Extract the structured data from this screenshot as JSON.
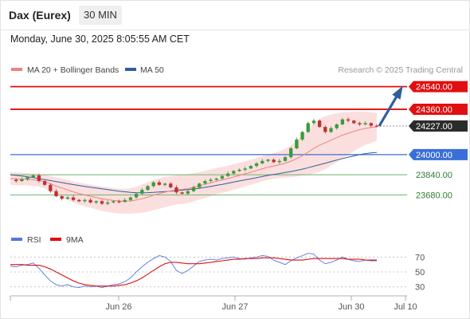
{
  "header": {
    "title": "Dax (Eurex)",
    "timeframe": "30 MIN"
  },
  "datetime": "Monday, June 30, 2025 8:05:55 AM CET",
  "legend": {
    "items": [
      {
        "label": "MA 20 + Bollinger Bands",
        "color": "#f08080"
      },
      {
        "label": "MA 50",
        "color": "#2f5f9f"
      }
    ],
    "credit": "Research © 2025 Trading Central"
  },
  "rsi_legend": {
    "items": [
      {
        "label": "RSI",
        "color": "#5577dd"
      },
      {
        "label": "9MA",
        "color": "#dd1111"
      }
    ]
  },
  "colors": {
    "resistance": "#e01010",
    "support_blue": "#3a6fd8",
    "support_green": "#6db36d",
    "arrow": "#2f5f9f",
    "up_candle": "#3c9a3c",
    "down_candle": "#c03030",
    "band": "#f7c5c5"
  },
  "chart_data": [
    {
      "type": "candlestick",
      "title": "",
      "x_ticks": [
        "Jun 26",
        "Jun 27",
        "Jun 30",
        "Jul 10"
      ],
      "ylim": [
        23480,
        24620
      ],
      "levels": [
        {
          "label": "24540.00",
          "value": 24540,
          "kind": "resistance",
          "style": "tag"
        },
        {
          "label": "24360.00",
          "value": 24360,
          "kind": "resistance",
          "style": "tag"
        },
        {
          "label": "24227.00",
          "value": 24227,
          "kind": "current",
          "style": "tag"
        },
        {
          "label": "24000.00",
          "value": 24000,
          "kind": "support",
          "style": "tag"
        },
        {
          "label": "23840.00",
          "value": 23840,
          "kind": "support",
          "style": "text"
        },
        {
          "label": "23680.00",
          "value": 23680,
          "kind": "support",
          "style": "text"
        }
      ],
      "close_series": [
        23800,
        23790,
        23805,
        23820,
        23835,
        23790,
        23760,
        23710,
        23670,
        23650,
        23660,
        23640,
        23630,
        23640,
        23620,
        23630,
        23610,
        23620,
        23630,
        23625,
        23640,
        23660,
        23690,
        23720,
        23750,
        23780,
        23760,
        23770,
        23740,
        23700,
        23690,
        23710,
        23740,
        23770,
        23790,
        23800,
        23810,
        23830,
        23850,
        23870,
        23880,
        23890,
        23910,
        23930,
        23950,
        23960,
        23940,
        23950,
        23980,
        24050,
        24120,
        24180,
        24250,
        24270,
        24220,
        24180,
        24210,
        24240,
        24280,
        24270,
        24250,
        24240,
        24250,
        24230,
        24227
      ],
      "ma20": [
        23810,
        23808,
        23806,
        23804,
        23800,
        23795,
        23785,
        23770,
        23750,
        23735,
        23720,
        23705,
        23690,
        23680,
        23670,
        23660,
        23650,
        23642,
        23636,
        23632,
        23630,
        23632,
        23640,
        23650,
        23663,
        23678,
        23690,
        23702,
        23712,
        23720,
        23724,
        23730,
        23740,
        23752,
        23764,
        23776,
        23790,
        23800,
        23810,
        23822,
        23835,
        23848,
        23860,
        23874,
        23888,
        23900,
        23910,
        23920,
        23932,
        23948,
        23968,
        23992,
        24020,
        24050,
        24075,
        24095,
        24115,
        24135,
        24155,
        24170,
        24185,
        24198,
        24208,
        24215,
        24220
      ],
      "ma50": [
        23840,
        23835,
        23830,
        23824,
        23818,
        23810,
        23802,
        23794,
        23786,
        23778,
        23770,
        23762,
        23755,
        23748,
        23741,
        23735,
        23728,
        23722,
        23716,
        23710,
        23705,
        23700,
        23698,
        23697,
        23698,
        23700,
        23703,
        23706,
        23710,
        23714,
        23718,
        23722,
        23727,
        23733,
        23740,
        23748,
        23756,
        23764,
        23773,
        23782,
        23791,
        23800,
        23808,
        23817,
        23826,
        23835,
        23843,
        23850,
        23858,
        23866,
        23875,
        23885,
        23896,
        23908,
        23920,
        23932,
        23945,
        23957,
        23968,
        23980,
        23990,
        24000,
        24008,
        24014,
        24018
      ],
      "bb_upper": [
        23860,
        23858,
        23856,
        23852,
        23848,
        23843,
        23838,
        23830,
        23820,
        23810,
        23800,
        23788,
        23778,
        23770,
        23762,
        23755,
        23748,
        23740,
        23735,
        23731,
        23729,
        23733,
        23745,
        23762,
        23780,
        23797,
        23810,
        23822,
        23830,
        23836,
        23840,
        23845,
        23852,
        23862,
        23872,
        23882,
        23893,
        23903,
        23913,
        23924,
        23936,
        23948,
        23960,
        23974,
        23988,
        24000,
        24012,
        24026,
        24046,
        24075,
        24110,
        24150,
        24200,
        24250,
        24285,
        24305,
        24318,
        24328,
        24336,
        24340,
        24342,
        24342,
        24340,
        24336,
        24330
      ],
      "bb_lower": [
        23760,
        23758,
        23756,
        23756,
        23752,
        23747,
        23732,
        23710,
        23680,
        23660,
        23640,
        23622,
        23602,
        23590,
        23578,
        23565,
        23552,
        23544,
        23537,
        23533,
        23531,
        23531,
        23535,
        23538,
        23546,
        23559,
        23570,
        23582,
        23594,
        23604,
        23608,
        23615,
        23628,
        23642,
        23656,
        23670,
        23687,
        23697,
        23707,
        23720,
        23734,
        23748,
        23760,
        23774,
        23788,
        23800,
        23808,
        23814,
        23818,
        23821,
        23826,
        23834,
        23840,
        23850,
        23865,
        23885,
        23912,
        23942,
        23974,
        24000,
        24028,
        24054,
        24076,
        24094,
        24110
      ],
      "projection": {
        "from": 24227,
        "to": 24540
      }
    },
    {
      "type": "line",
      "title": "",
      "y_ticks": [
        70,
        50,
        30
      ],
      "ylim": [
        20,
        80
      ],
      "series": [
        {
          "name": "RSI",
          "values": [
            58,
            57,
            59,
            60,
            62,
            55,
            46,
            38,
            33,
            31,
            33,
            30,
            29,
            31,
            30,
            31,
            29,
            31,
            33,
            34,
            37,
            42,
            50,
            57,
            63,
            68,
            72,
            70,
            64,
            52,
            48,
            52,
            58,
            64,
            66,
            67,
            66,
            68,
            69,
            70,
            68,
            67,
            69,
            70,
            72,
            71,
            66,
            63,
            60,
            65,
            69,
            72,
            75,
            74,
            66,
            61,
            63,
            66,
            70,
            67,
            65,
            64,
            66,
            65,
            65
          ]
        },
        {
          "name": "9MA",
          "values": [
            60,
            60,
            60,
            59,
            59,
            59,
            57,
            54,
            50,
            46,
            42,
            38,
            35,
            33,
            32,
            31,
            31,
            31,
            31,
            32,
            33,
            35,
            38,
            42,
            47,
            52,
            57,
            61,
            63,
            63,
            62,
            61,
            61,
            61,
            62,
            63,
            64,
            65,
            66,
            67,
            67,
            68,
            68,
            68,
            69,
            69,
            69,
            68,
            67,
            66,
            66,
            66,
            67,
            68,
            68,
            68,
            68,
            68,
            68,
            67,
            67,
            67,
            66,
            66,
            66
          ]
        }
      ]
    }
  ]
}
